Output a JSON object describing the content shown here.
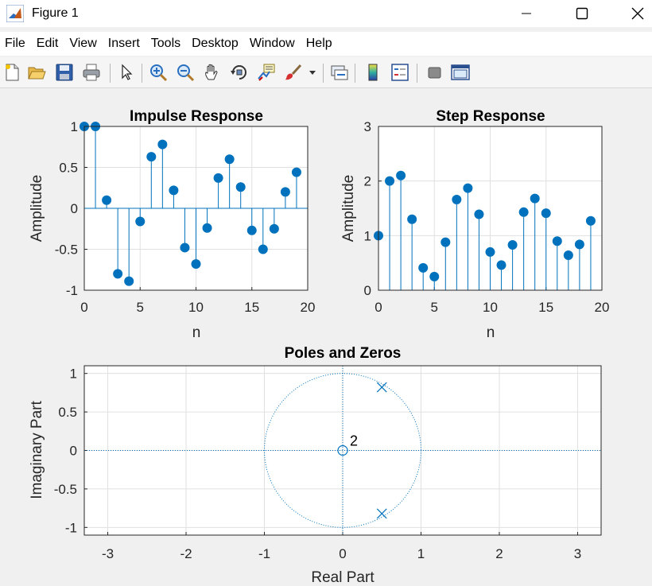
{
  "window": {
    "title": "Figure 1",
    "icons": [
      "matlab-logo-icon",
      "minimize-icon",
      "maximize-icon",
      "close-icon"
    ]
  },
  "menu": {
    "items": [
      "File",
      "Edit",
      "View",
      "Insert",
      "Tools",
      "Desktop",
      "Window",
      "Help"
    ]
  },
  "toolbar": {
    "icons": [
      "new-figure-icon",
      "open-file-icon",
      "save-icon",
      "print-icon",
      "pointer-icon",
      "zoom-in-icon",
      "zoom-out-icon",
      "pan-hand-icon",
      "rotate-3d-icon",
      "data-cursor-icon",
      "brush-icon",
      "brush-dropdown-icon",
      "link-plot-icon",
      "insert-colorbar-icon",
      "insert-legend-icon",
      "hide-plot-tools-icon",
      "show-plot-tools-icon"
    ]
  },
  "colors": {
    "stem": "#0072BD",
    "grid": "#e0e0e0",
    "background": "#f0f0f0"
  },
  "chart_data": [
    {
      "type": "stem",
      "title": "Impulse Response",
      "xlabel": "n",
      "ylabel": "Amplitude",
      "xlim": [
        0,
        20
      ],
      "ylim": [
        -1,
        1
      ],
      "xticks": [
        "0",
        "5",
        "10",
        "15",
        "20"
      ],
      "yticks": [
        "-1",
        "-0.5",
        "0",
        "0.5",
        "1"
      ],
      "x": [
        0,
        1,
        2,
        3,
        4,
        5,
        6,
        7,
        8,
        9,
        10,
        11,
        12,
        13,
        14,
        15,
        16,
        17,
        18,
        19
      ],
      "y": [
        1,
        1,
        0.1,
        -0.8,
        -0.89,
        -0.16,
        0.63,
        0.78,
        0.22,
        -0.48,
        -0.68,
        -0.24,
        0.37,
        0.6,
        0.26,
        -0.27,
        -0.5,
        -0.25,
        0.2,
        0.44
      ]
    },
    {
      "type": "stem",
      "title": "Step Response",
      "xlabel": "n",
      "ylabel": "Amplitude",
      "xlim": [
        0,
        20
      ],
      "ylim": [
        0,
        3
      ],
      "xticks": [
        "0",
        "5",
        "10",
        "15",
        "20"
      ],
      "yticks": [
        "0",
        "1",
        "2",
        "3"
      ],
      "x": [
        0,
        1,
        2,
        3,
        4,
        5,
        6,
        7,
        8,
        9,
        10,
        11,
        12,
        13,
        14,
        15,
        16,
        17,
        18,
        19
      ],
      "y": [
        1,
        2,
        2.1,
        1.3,
        0.41,
        0.25,
        0.88,
        1.66,
        1.87,
        1.39,
        0.7,
        0.46,
        0.83,
        1.43,
        1.68,
        1.41,
        0.9,
        0.64,
        0.84,
        1.27
      ]
    },
    {
      "type": "pole-zero",
      "title": "Poles and Zeros",
      "xlabel": "Real Part",
      "ylabel": "Imaginary Part",
      "xlim": [
        -3.3,
        3.3
      ],
      "ylim": [
        -1.1,
        1.1
      ],
      "xticks": [
        "-3",
        "-2",
        "-1",
        "0",
        "1",
        "2",
        "3"
      ],
      "yticks": [
        "-1",
        "-0.5",
        "0",
        "0.5",
        "1"
      ],
      "zeros": [
        {
          "re": 0,
          "im": 0,
          "multiplicity": "2"
        }
      ],
      "poles": [
        {
          "re": 0.5,
          "im": 0.82
        },
        {
          "re": 0.5,
          "im": -0.82
        }
      ],
      "unit_circle": true
    }
  ]
}
